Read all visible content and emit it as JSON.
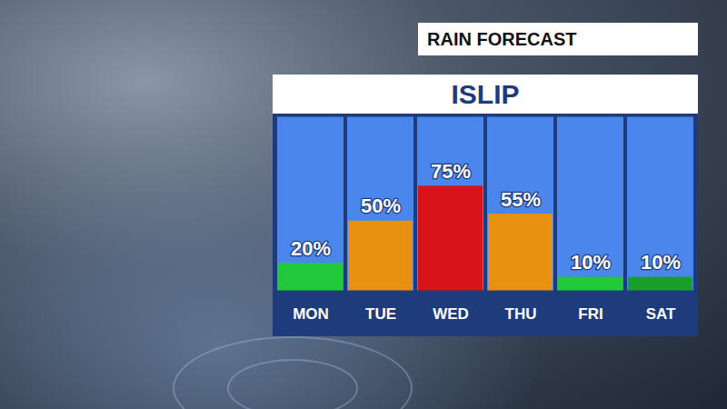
{
  "chart_data": {
    "type": "bar",
    "title": "RAIN FORECAST",
    "subtitle": "ISLIP",
    "categories": [
      "MON",
      "TUE",
      "WED",
      "THU",
      "FRI",
      "SAT"
    ],
    "values": [
      20,
      50,
      75,
      55,
      10,
      10
    ],
    "value_labels": [
      "20%",
      "50%",
      "75%",
      "55%",
      "10%",
      "10%"
    ],
    "colors": [
      "#22c93a",
      "#e8900f",
      "#d8141a",
      "#e8900f",
      "#22c93a",
      "#1a9e2c"
    ],
    "ylim": [
      0,
      125
    ],
    "data_labels": true,
    "tick_labels": "x"
  }
}
